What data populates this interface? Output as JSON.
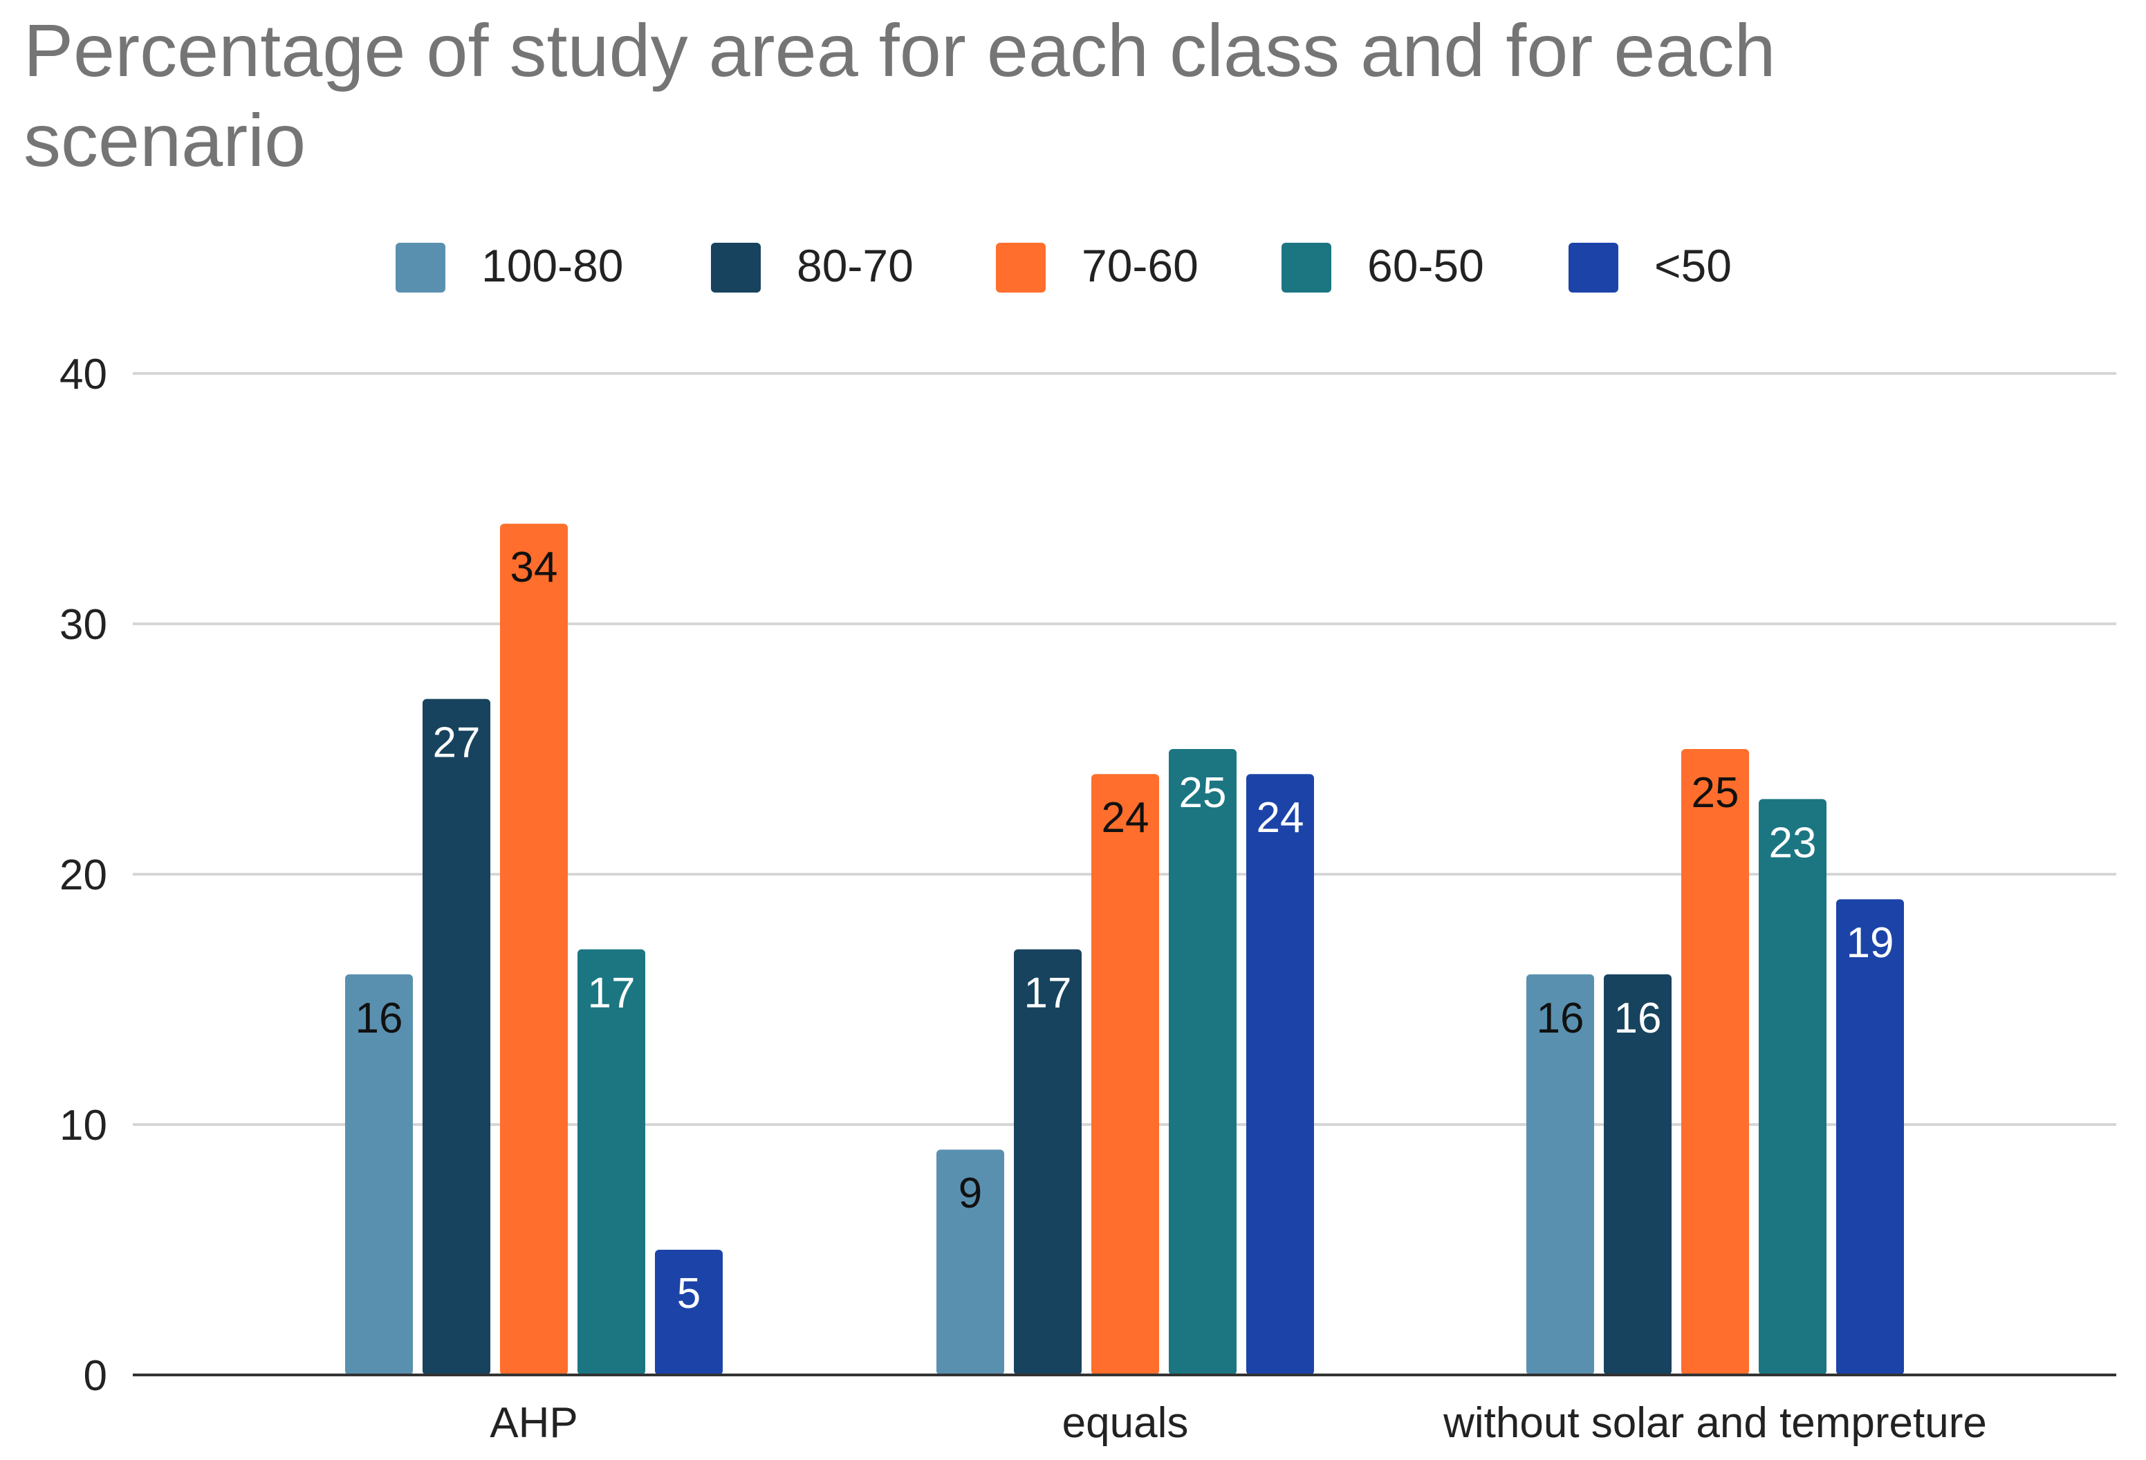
{
  "chart_data": {
    "type": "bar",
    "title": "Percentage of study area for each class and for each scenario",
    "title_lines": [
      "Percentage of study area for each class and for each",
      "scenario"
    ],
    "xlabel": "",
    "ylabel": "",
    "categories": [
      "AHP",
      "equals",
      "without solar and tempreture"
    ],
    "series": [
      {
        "name": "100-80",
        "color": "#5a90af",
        "label_color": "#111111",
        "values": [
          16,
          9,
          16
        ]
      },
      {
        "name": "80-70",
        "color": "#17435e",
        "label_color": "#ffffff",
        "values": [
          27,
          17,
          16
        ]
      },
      {
        "name": "70-60",
        "color": "#ff6e2c",
        "label_color": "#111111",
        "values": [
          34,
          24,
          25
        ]
      },
      {
        "name": "60-50",
        "color": "#1b7682",
        "label_color": "#ffffff",
        "values": [
          17,
          25,
          23
        ]
      },
      {
        "name": "<50",
        "color": "#1c44a8",
        "label_color": "#ffffff",
        "values": [
          5,
          24,
          19
        ]
      }
    ],
    "ylim": [
      0,
      40
    ],
    "yticks": [
      0,
      10,
      20,
      30,
      40
    ],
    "grid": true,
    "legend": "top",
    "data_labels": true
  }
}
